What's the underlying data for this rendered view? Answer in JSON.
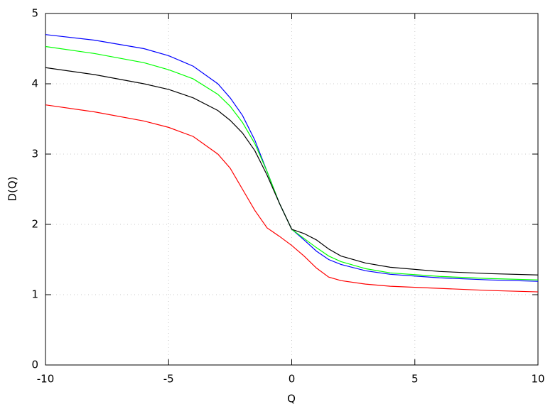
{
  "chart_data": {
    "type": "line",
    "x_label": "Q",
    "y_label": "D(Q)",
    "x": [
      -10,
      -8,
      -6,
      -5,
      -4,
      -3,
      -2.5,
      -2,
      -1.5,
      -1,
      -0.5,
      0,
      0.5,
      1,
      1.5,
      2,
      3,
      4,
      6,
      8,
      10
    ],
    "series": [
      {
        "color": "#0000ff",
        "values": [
          4.7,
          4.62,
          4.5,
          4.4,
          4.25,
          4.0,
          3.8,
          3.55,
          3.2,
          2.75,
          2.3,
          1.93,
          1.78,
          1.62,
          1.5,
          1.43,
          1.34,
          1.29,
          1.24,
          1.21,
          1.19
        ]
      },
      {
        "color": "#00ff00",
        "values": [
          4.53,
          4.43,
          4.3,
          4.2,
          4.07,
          3.85,
          3.68,
          3.45,
          3.15,
          2.75,
          2.3,
          1.93,
          1.8,
          1.67,
          1.55,
          1.47,
          1.37,
          1.31,
          1.26,
          1.23,
          1.21
        ]
      },
      {
        "color": "#000000",
        "values": [
          4.23,
          4.13,
          4.0,
          3.92,
          3.8,
          3.62,
          3.48,
          3.3,
          3.05,
          2.7,
          2.3,
          1.93,
          1.87,
          1.78,
          1.65,
          1.55,
          1.45,
          1.39,
          1.33,
          1.3,
          1.28
        ]
      },
      {
        "color": "#ff0000",
        "values": [
          3.7,
          3.6,
          3.47,
          3.38,
          3.25,
          3.0,
          2.8,
          2.5,
          2.2,
          1.95,
          1.83,
          1.7,
          1.55,
          1.38,
          1.25,
          1.2,
          1.15,
          1.12,
          1.09,
          1.06,
          1.04
        ]
      }
    ],
    "xlim": [
      -10,
      10
    ],
    "ylim": [
      0,
      5
    ],
    "xticks": [
      -10,
      -5,
      0,
      5,
      10
    ],
    "yticks": [
      0,
      1,
      2,
      3,
      4,
      5
    ],
    "grid": true
  }
}
